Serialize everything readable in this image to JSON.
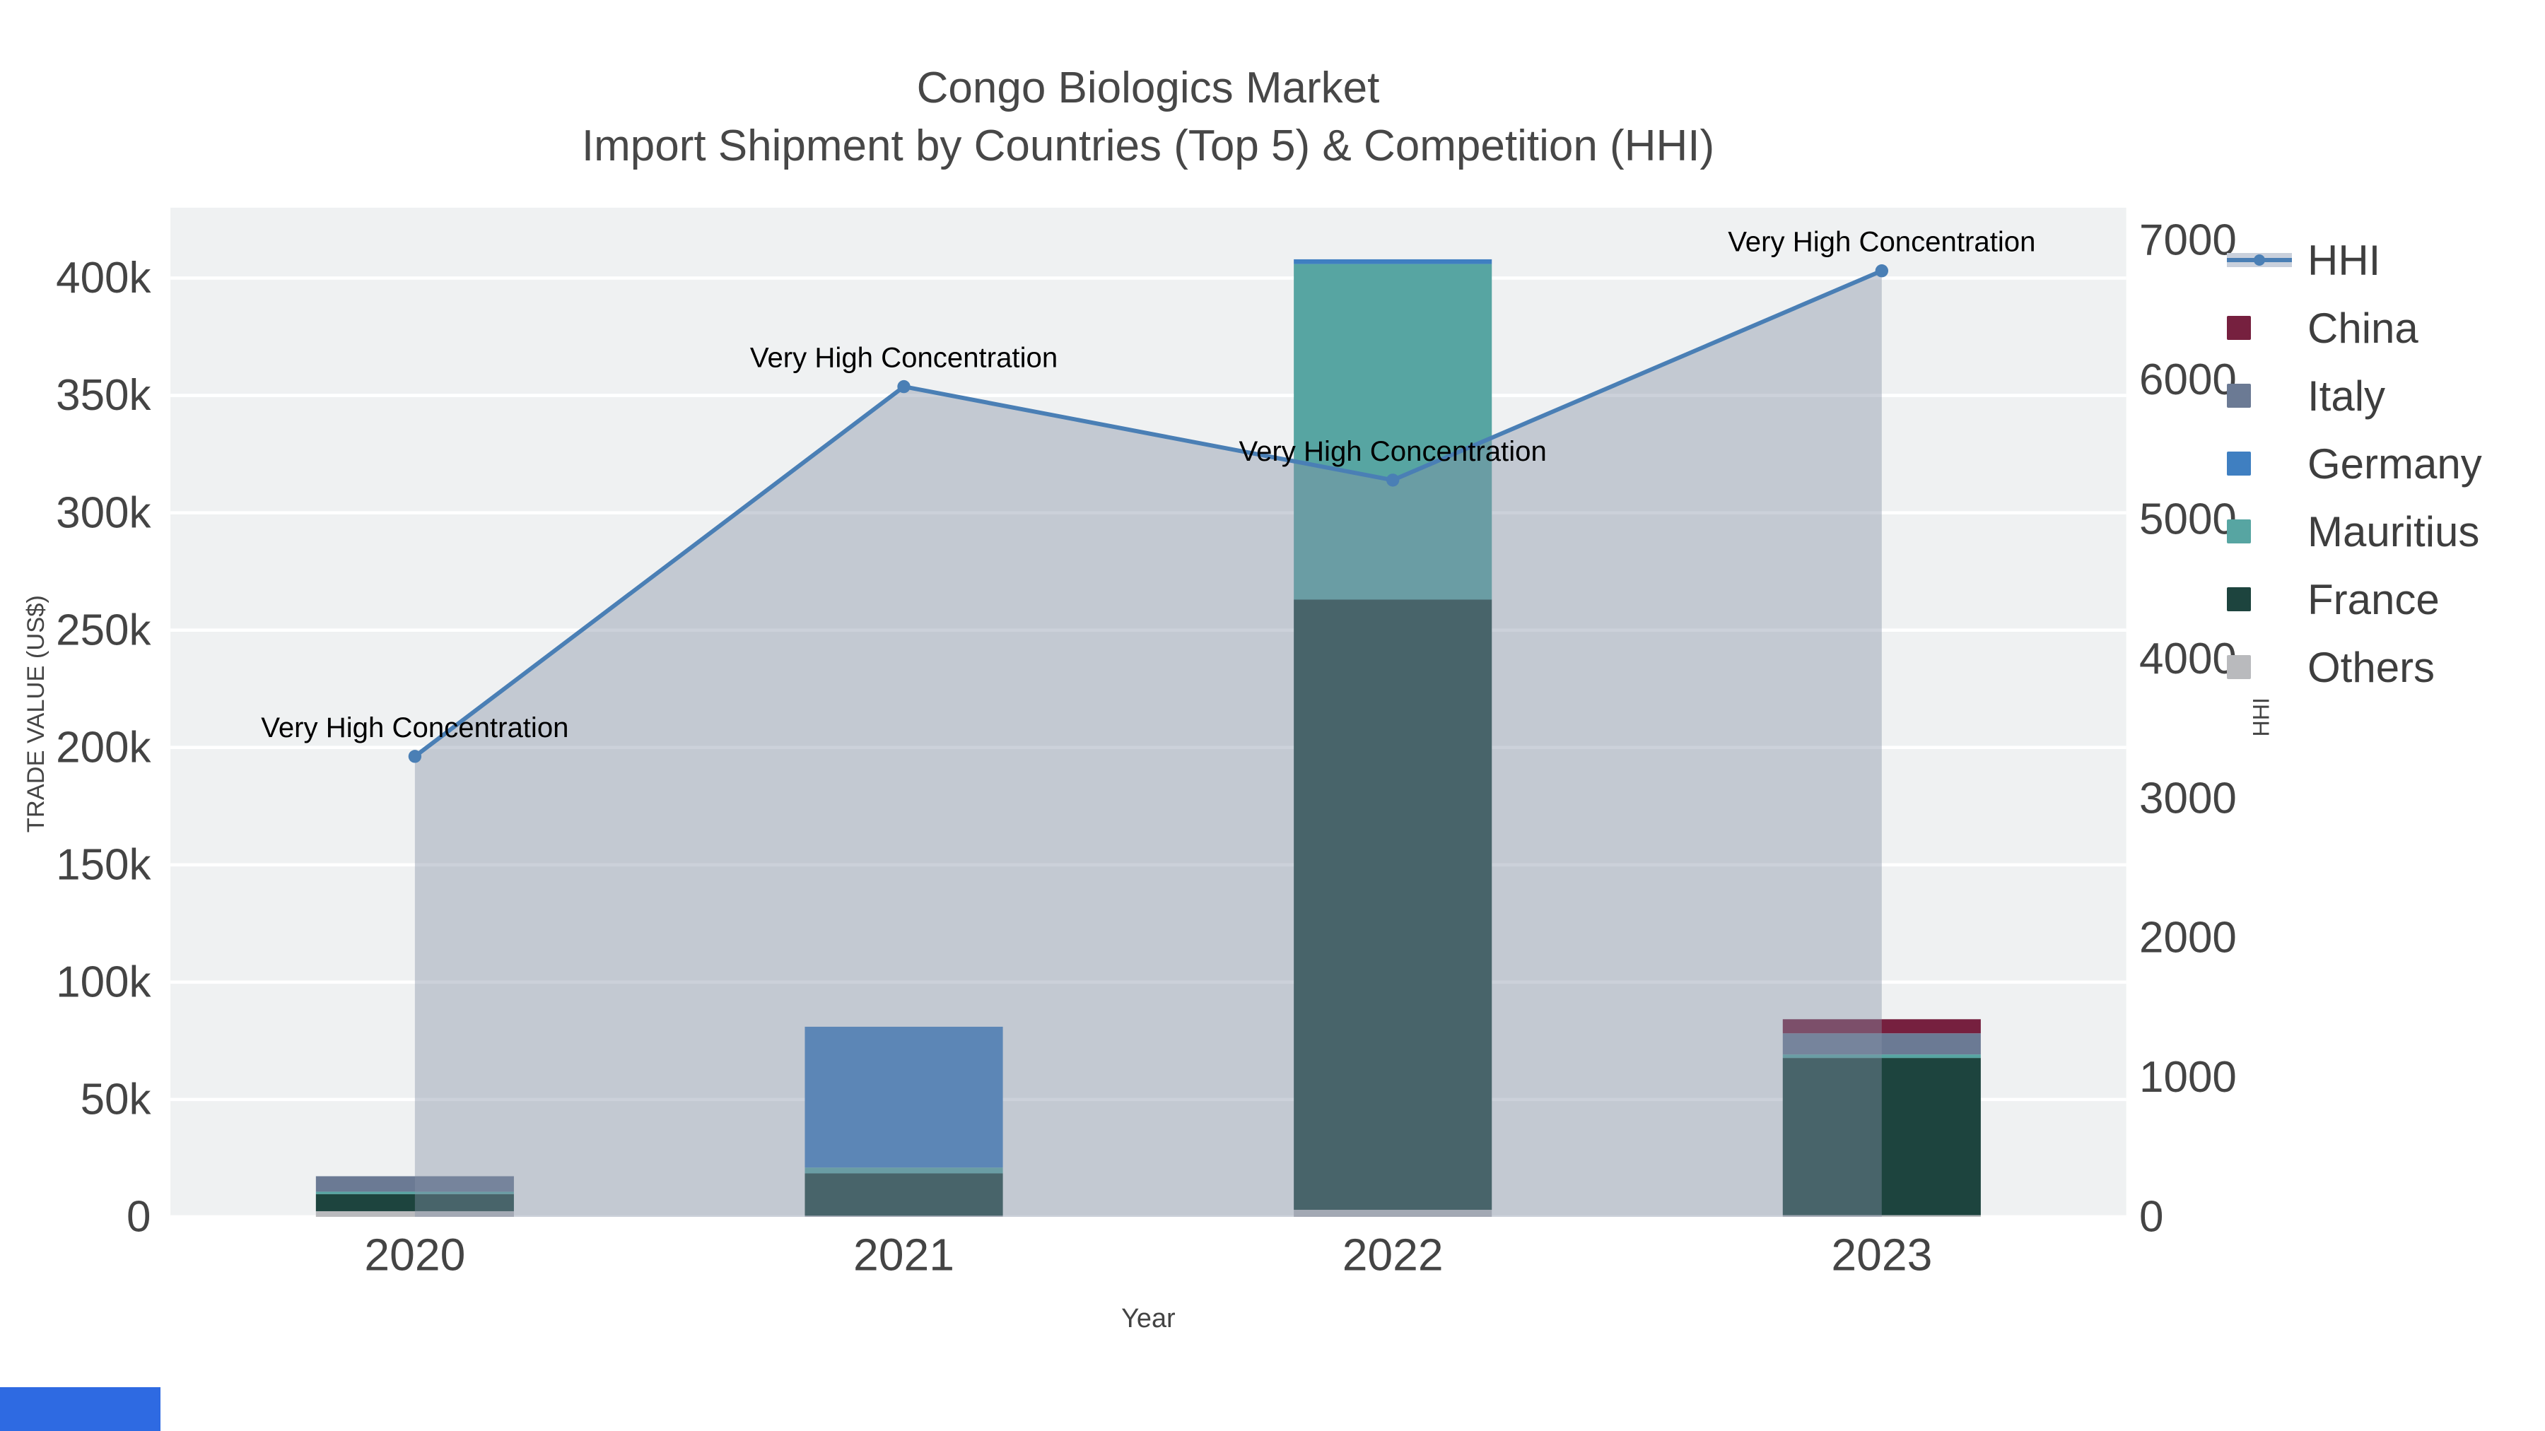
{
  "chart_data": {
    "type": "combo: stacked bars (trade value by country) + line with area fill (HHI, secondary axis)",
    "title": "Congo Biologics Market",
    "subtitle": "Import Shipment by Countries (Top 5) & Competition (HHI)",
    "categories": [
      "2020",
      "2021",
      "2022",
      "2023"
    ],
    "stacked_bar_series": [
      {
        "name": "Others",
        "color": "#b9babd",
        "values": [
          2400,
          500,
          3000,
          700
        ]
      },
      {
        "name": "France",
        "color": "#1d443e",
        "values": [
          7300,
          18000,
          260000,
          67000
        ]
      },
      {
        "name": "Mauritius",
        "color": "#57a5a2",
        "values": [
          1000,
          2500,
          143000,
          1500
        ]
      },
      {
        "name": "Germany",
        "color": "#3f7fc1",
        "values": [
          0,
          60000,
          2000,
          0
        ]
      },
      {
        "name": "Italy",
        "color": "#6b7a94",
        "values": [
          6600,
          0,
          0,
          9000
        ]
      },
      {
        "name": "China",
        "color": "#76203f",
        "values": [
          0,
          0,
          0,
          6000
        ]
      }
    ],
    "line_series": {
      "name": "HHI",
      "color": "#4a7fb5",
      "area_fill_color": "#8592a8",
      "area_fill_opacity": 0.42,
      "values": [
        3300,
        5950,
        5280,
        6780
      ],
      "annotations": [
        "Very High Concentration",
        "Very High Concentration",
        "Very High Concentration",
        "Very High Concentration"
      ]
    },
    "y_left": {
      "label": "TRADE VALUE (US$)",
      "min": 0,
      "max": 430000,
      "tick_step": 50000
    },
    "y_right": {
      "label": "HHI",
      "min": 0,
      "max": 7000,
      "tick_step": 1000
    },
    "y_left_tick_labels": [
      "0",
      "50k",
      "100k",
      "150k",
      "200k",
      "250k",
      "300k",
      "350k",
      "400k"
    ],
    "y_right_tick_labels": [
      "0",
      "1000",
      "2000",
      "3000",
      "4000",
      "5000",
      "6000",
      "7000"
    ],
    "x_label": "Year",
    "layout": {
      "plot_background": "#eff1f2",
      "gridlines": "horizontal white",
      "legend_position": "right"
    }
  },
  "legend": {
    "items": [
      {
        "label": "HHI",
        "kind": "line",
        "color": "#4a7fb5",
        "band_color": "#c9d0dc"
      },
      {
        "label": "China",
        "kind": "swatch",
        "color": "#76203f"
      },
      {
        "label": "Italy",
        "kind": "swatch",
        "color": "#6b7a94"
      },
      {
        "label": "Germany",
        "kind": "swatch",
        "color": "#3f7fc1"
      },
      {
        "label": "Mauritius",
        "kind": "swatch",
        "color": "#57a5a2"
      },
      {
        "label": "France",
        "kind": "swatch",
        "color": "#1d443e"
      },
      {
        "label": "Others",
        "kind": "swatch",
        "color": "#b9babd"
      }
    ]
  },
  "accent_block_color": "#2e6ae2",
  "text_colors": {
    "ticks": "#444444",
    "title": "#474747",
    "annotations": "#000000"
  }
}
